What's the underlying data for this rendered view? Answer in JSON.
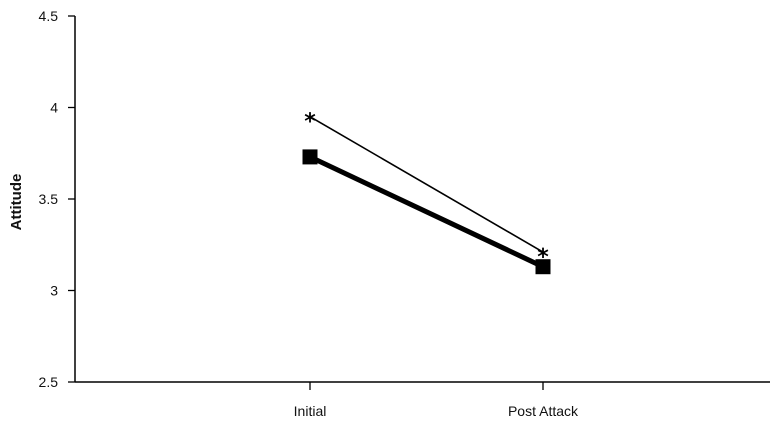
{
  "chart_data": {
    "type": "line",
    "categories": [
      "Initial",
      "Post Attack"
    ],
    "series": [
      {
        "values": [
          3.95,
          3.21
        ],
        "marker": "star",
        "line": "thin"
      },
      {
        "values": [
          3.73,
          3.13
        ],
        "marker": "square",
        "line": "thick"
      }
    ],
    "ylabel": "Attitude",
    "xlabel": "",
    "title": "",
    "ylim": [
      2.5,
      4.5
    ],
    "yticks": [
      "2.5",
      "3",
      "3.5",
      "4",
      "4.5"
    ],
    "grid": false,
    "legend": "none",
    "colors": {
      "line": "#000000",
      "marker": "#000000"
    }
  }
}
